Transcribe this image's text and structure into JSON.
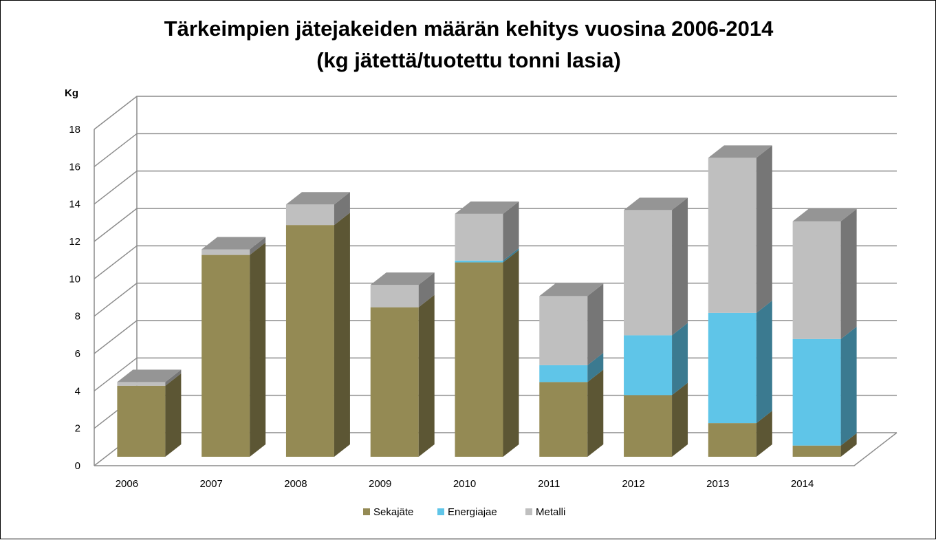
{
  "chart_data": {
    "type": "bar",
    "stacked": true,
    "three_d": true,
    "title_lines": [
      "Tärkeimpien jätejakeiden määrän kehitys vuosina 2006-2014",
      "(kg jätettä/tuotettu tonni lasia)"
    ],
    "ylabel": "Kg",
    "xlabel": "",
    "ylim": [
      0,
      18
    ],
    "yticks": [
      0,
      2,
      4,
      6,
      8,
      10,
      12,
      14,
      16,
      18
    ],
    "grid": true,
    "legend_position": "bottom",
    "categories": [
      "2006",
      "2007",
      "2008",
      "2009",
      "2010",
      "2011",
      "2012",
      "2013",
      "2014"
    ],
    "series": [
      {
        "name": "Sekajäte",
        "color": "#948A54",
        "values": [
          3.8,
          10.8,
          12.4,
          8.0,
          10.4,
          4.0,
          3.3,
          1.8,
          0.6
        ]
      },
      {
        "name": "Energiajae",
        "color": "#5FC5E8",
        "values": [
          0,
          0,
          0,
          0,
          0.1,
          0.9,
          3.2,
          5.9,
          5.7
        ]
      },
      {
        "name": "Metalli",
        "color": "#BFBFBF",
        "values": [
          0.2,
          0.3,
          1.1,
          1.2,
          2.5,
          3.7,
          6.7,
          8.3,
          6.3
        ]
      }
    ]
  }
}
